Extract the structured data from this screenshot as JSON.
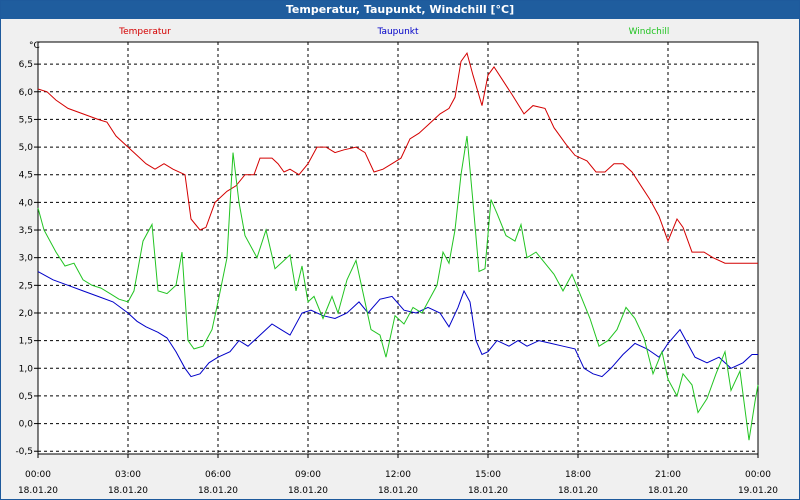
{
  "window": {
    "title": "Temperatur, Taupunkt, Windchill [°C]"
  },
  "colors": {
    "titlebar": "#1f5d9e",
    "temperatur": "#d40000",
    "taupunkt": "#0000c8",
    "windchill": "#22c422",
    "grid": "#000000"
  },
  "chart_data": {
    "type": "line",
    "title": "Temperatur, Taupunkt, Windchill [°C]",
    "ylabel": "°C",
    "xlabel": "",
    "ylim": [
      -0.55,
      6.9
    ],
    "xlim": [
      0,
      24
    ],
    "grid": true,
    "legend": "top",
    "y_ticks": [
      "6,5",
      "6,0",
      "5,5",
      "5,0",
      "4,5",
      "4,0",
      "3,5",
      "3,0",
      "2,5",
      "2,0",
      "1,5",
      "1,0",
      "0,5",
      "0,0",
      "-0,5"
    ],
    "x_ticks": [
      {
        "time": "00:00",
        "date": "18.01.20"
      },
      {
        "time": "03:00",
        "date": "18.01.20"
      },
      {
        "time": "06:00",
        "date": "18.01.20"
      },
      {
        "time": "09:00",
        "date": "18.01.20"
      },
      {
        "time": "12:00",
        "date": "18.01.20"
      },
      {
        "time": "15:00",
        "date": "18.01.20"
      },
      {
        "time": "18:00",
        "date": "18.01.20"
      },
      {
        "time": "21:00",
        "date": "18.01.20"
      },
      {
        "time": "00:00",
        "date": "19.01.20"
      }
    ],
    "series": [
      {
        "name": "Temperatur",
        "color": "#d40000",
        "points": [
          [
            0,
            6.05
          ],
          [
            0.3,
            6.0
          ],
          [
            0.6,
            5.85
          ],
          [
            1,
            5.7
          ],
          [
            1.5,
            5.6
          ],
          [
            2,
            5.5
          ],
          [
            2.3,
            5.45
          ],
          [
            2.6,
            5.2
          ],
          [
            3,
            5.0
          ],
          [
            3.3,
            4.85
          ],
          [
            3.6,
            4.7
          ],
          [
            3.9,
            4.6
          ],
          [
            4.2,
            4.7
          ],
          [
            4.5,
            4.6
          ],
          [
            4.9,
            4.5
          ],
          [
            5.1,
            3.7
          ],
          [
            5.4,
            3.5
          ],
          [
            5.6,
            3.55
          ],
          [
            5.9,
            4.0
          ],
          [
            6.3,
            4.2
          ],
          [
            6.6,
            4.3
          ],
          [
            6.9,
            4.5
          ],
          [
            7.2,
            4.5
          ],
          [
            7.4,
            4.8
          ],
          [
            7.8,
            4.8
          ],
          [
            8.0,
            4.7
          ],
          [
            8.2,
            4.55
          ],
          [
            8.4,
            4.6
          ],
          [
            8.7,
            4.5
          ],
          [
            9.0,
            4.7
          ],
          [
            9.3,
            5.0
          ],
          [
            9.6,
            5.0
          ],
          [
            9.9,
            4.9
          ],
          [
            10.2,
            4.95
          ],
          [
            10.6,
            5.0
          ],
          [
            10.9,
            4.9
          ],
          [
            11.2,
            4.55
          ],
          [
            11.5,
            4.6
          ],
          [
            11.8,
            4.7
          ],
          [
            12.1,
            4.8
          ],
          [
            12.4,
            5.15
          ],
          [
            12.7,
            5.25
          ],
          [
            13.0,
            5.4
          ],
          [
            13.4,
            5.6
          ],
          [
            13.7,
            5.7
          ],
          [
            13.9,
            5.9
          ],
          [
            14.1,
            6.55
          ],
          [
            14.3,
            6.7
          ],
          [
            14.5,
            6.3
          ],
          [
            14.8,
            5.75
          ],
          [
            15.0,
            6.3
          ],
          [
            15.2,
            6.45
          ],
          [
            15.5,
            6.2
          ],
          [
            15.8,
            5.95
          ],
          [
            16.2,
            5.6
          ],
          [
            16.5,
            5.75
          ],
          [
            16.9,
            5.7
          ],
          [
            17.2,
            5.35
          ],
          [
            17.6,
            5.05
          ],
          [
            17.9,
            4.85
          ],
          [
            18.3,
            4.75
          ],
          [
            18.6,
            4.55
          ],
          [
            18.9,
            4.55
          ],
          [
            19.2,
            4.7
          ],
          [
            19.5,
            4.7
          ],
          [
            19.8,
            4.55
          ],
          [
            20.1,
            4.3
          ],
          [
            20.4,
            4.05
          ],
          [
            20.7,
            3.75
          ],
          [
            21.0,
            3.3
          ],
          [
            21.3,
            3.7
          ],
          [
            21.5,
            3.55
          ],
          [
            21.8,
            3.1
          ],
          [
            22.2,
            3.1
          ],
          [
            22.5,
            3.0
          ],
          [
            22.9,
            2.9
          ],
          [
            23.3,
            2.9
          ],
          [
            23.6,
            2.9
          ],
          [
            24.0,
            2.9
          ]
        ]
      },
      {
        "name": "Taupunkt",
        "color": "#0000c8",
        "points": [
          [
            0,
            2.75
          ],
          [
            0.5,
            2.6
          ],
          [
            1,
            2.5
          ],
          [
            1.5,
            2.4
          ],
          [
            2,
            2.3
          ],
          [
            2.5,
            2.2
          ],
          [
            3,
            2.0
          ],
          [
            3.3,
            1.85
          ],
          [
            3.6,
            1.75
          ],
          [
            4.0,
            1.65
          ],
          [
            4.3,
            1.55
          ],
          [
            4.6,
            1.3
          ],
          [
            4.9,
            1.0
          ],
          [
            5.1,
            0.85
          ],
          [
            5.4,
            0.9
          ],
          [
            5.7,
            1.1
          ],
          [
            6.0,
            1.2
          ],
          [
            6.4,
            1.3
          ],
          [
            6.7,
            1.5
          ],
          [
            7.0,
            1.4
          ],
          [
            7.4,
            1.6
          ],
          [
            7.8,
            1.8
          ],
          [
            8.1,
            1.7
          ],
          [
            8.4,
            1.6
          ],
          [
            8.8,
            2.0
          ],
          [
            9.1,
            2.05
          ],
          [
            9.5,
            1.95
          ],
          [
            9.9,
            1.9
          ],
          [
            10.3,
            2.0
          ],
          [
            10.7,
            2.2
          ],
          [
            11.0,
            2.0
          ],
          [
            11.4,
            2.25
          ],
          [
            11.8,
            2.3
          ],
          [
            12.2,
            2.05
          ],
          [
            12.6,
            2.0
          ],
          [
            13.0,
            2.1
          ],
          [
            13.4,
            2.0
          ],
          [
            13.7,
            1.75
          ],
          [
            14.0,
            2.1
          ],
          [
            14.2,
            2.4
          ],
          [
            14.4,
            2.2
          ],
          [
            14.6,
            1.5
          ],
          [
            14.8,
            1.25
          ],
          [
            15.0,
            1.3
          ],
          [
            15.3,
            1.5
          ],
          [
            15.7,
            1.4
          ],
          [
            16.0,
            1.5
          ],
          [
            16.3,
            1.4
          ],
          [
            16.7,
            1.5
          ],
          [
            17.1,
            1.45
          ],
          [
            17.5,
            1.4
          ],
          [
            17.9,
            1.35
          ],
          [
            18.2,
            1.0
          ],
          [
            18.5,
            0.9
          ],
          [
            18.8,
            0.85
          ],
          [
            19.1,
            1.0
          ],
          [
            19.5,
            1.25
          ],
          [
            19.9,
            1.45
          ],
          [
            20.3,
            1.35
          ],
          [
            20.7,
            1.2
          ],
          [
            21.0,
            1.45
          ],
          [
            21.4,
            1.7
          ],
          [
            21.6,
            1.5
          ],
          [
            21.9,
            1.2
          ],
          [
            22.3,
            1.1
          ],
          [
            22.7,
            1.2
          ],
          [
            23.1,
            1.0
          ],
          [
            23.5,
            1.1
          ],
          [
            23.8,
            1.25
          ],
          [
            24.0,
            1.25
          ]
        ]
      },
      {
        "name": "Windchill",
        "color": "#22c422",
        "points": [
          [
            0,
            3.9
          ],
          [
            0.2,
            3.5
          ],
          [
            0.6,
            3.1
          ],
          [
            0.9,
            2.85
          ],
          [
            1.2,
            2.9
          ],
          [
            1.5,
            2.6
          ],
          [
            1.8,
            2.5
          ],
          [
            2.1,
            2.45
          ],
          [
            2.4,
            2.35
          ],
          [
            2.7,
            2.25
          ],
          [
            3.0,
            2.2
          ],
          [
            3.2,
            2.4
          ],
          [
            3.5,
            3.3
          ],
          [
            3.8,
            3.6
          ],
          [
            4.0,
            2.4
          ],
          [
            4.3,
            2.35
          ],
          [
            4.6,
            2.5
          ],
          [
            4.8,
            3.1
          ],
          [
            5.0,
            1.5
          ],
          [
            5.2,
            1.35
          ],
          [
            5.5,
            1.4
          ],
          [
            5.8,
            1.7
          ],
          [
            6.0,
            2.2
          ],
          [
            6.3,
            3.0
          ],
          [
            6.5,
            4.9
          ],
          [
            6.7,
            4.0
          ],
          [
            6.9,
            3.4
          ],
          [
            7.1,
            3.2
          ],
          [
            7.3,
            3.0
          ],
          [
            7.6,
            3.5
          ],
          [
            7.9,
            2.8
          ],
          [
            8.1,
            2.9
          ],
          [
            8.4,
            3.05
          ],
          [
            8.6,
            2.4
          ],
          [
            8.8,
            2.85
          ],
          [
            9.0,
            2.2
          ],
          [
            9.2,
            2.3
          ],
          [
            9.5,
            1.9
          ],
          [
            9.8,
            2.3
          ],
          [
            10.0,
            2.0
          ],
          [
            10.3,
            2.6
          ],
          [
            10.6,
            2.95
          ],
          [
            10.9,
            2.2
          ],
          [
            11.1,
            1.7
          ],
          [
            11.4,
            1.6
          ],
          [
            11.6,
            1.2
          ],
          [
            11.9,
            1.95
          ],
          [
            12.2,
            1.8
          ],
          [
            12.5,
            2.1
          ],
          [
            12.8,
            2.0
          ],
          [
            13.0,
            2.2
          ],
          [
            13.3,
            2.5
          ],
          [
            13.5,
            3.1
          ],
          [
            13.7,
            2.9
          ],
          [
            13.9,
            3.5
          ],
          [
            14.1,
            4.5
          ],
          [
            14.3,
            5.2
          ],
          [
            14.5,
            4.0
          ],
          [
            14.7,
            2.75
          ],
          [
            14.9,
            2.8
          ],
          [
            15.1,
            4.05
          ],
          [
            15.3,
            3.8
          ],
          [
            15.6,
            3.4
          ],
          [
            15.9,
            3.3
          ],
          [
            16.1,
            3.6
          ],
          [
            16.3,
            3.0
          ],
          [
            16.6,
            3.1
          ],
          [
            16.9,
            2.9
          ],
          [
            17.2,
            2.7
          ],
          [
            17.5,
            2.4
          ],
          [
            17.8,
            2.7
          ],
          [
            18.1,
            2.3
          ],
          [
            18.4,
            1.9
          ],
          [
            18.7,
            1.4
          ],
          [
            19.0,
            1.5
          ],
          [
            19.3,
            1.7
          ],
          [
            19.6,
            2.1
          ],
          [
            19.9,
            1.9
          ],
          [
            20.2,
            1.55
          ],
          [
            20.5,
            0.9
          ],
          [
            20.8,
            1.3
          ],
          [
            21.0,
            0.8
          ],
          [
            21.3,
            0.5
          ],
          [
            21.5,
            0.9
          ],
          [
            21.8,
            0.7
          ],
          [
            22.0,
            0.2
          ],
          [
            22.3,
            0.45
          ],
          [
            22.6,
            0.9
          ],
          [
            22.9,
            1.3
          ],
          [
            23.1,
            0.6
          ],
          [
            23.4,
            0.95
          ],
          [
            23.7,
            -0.3
          ],
          [
            23.9,
            0.4
          ],
          [
            24.0,
            0.7
          ]
        ]
      }
    ]
  }
}
